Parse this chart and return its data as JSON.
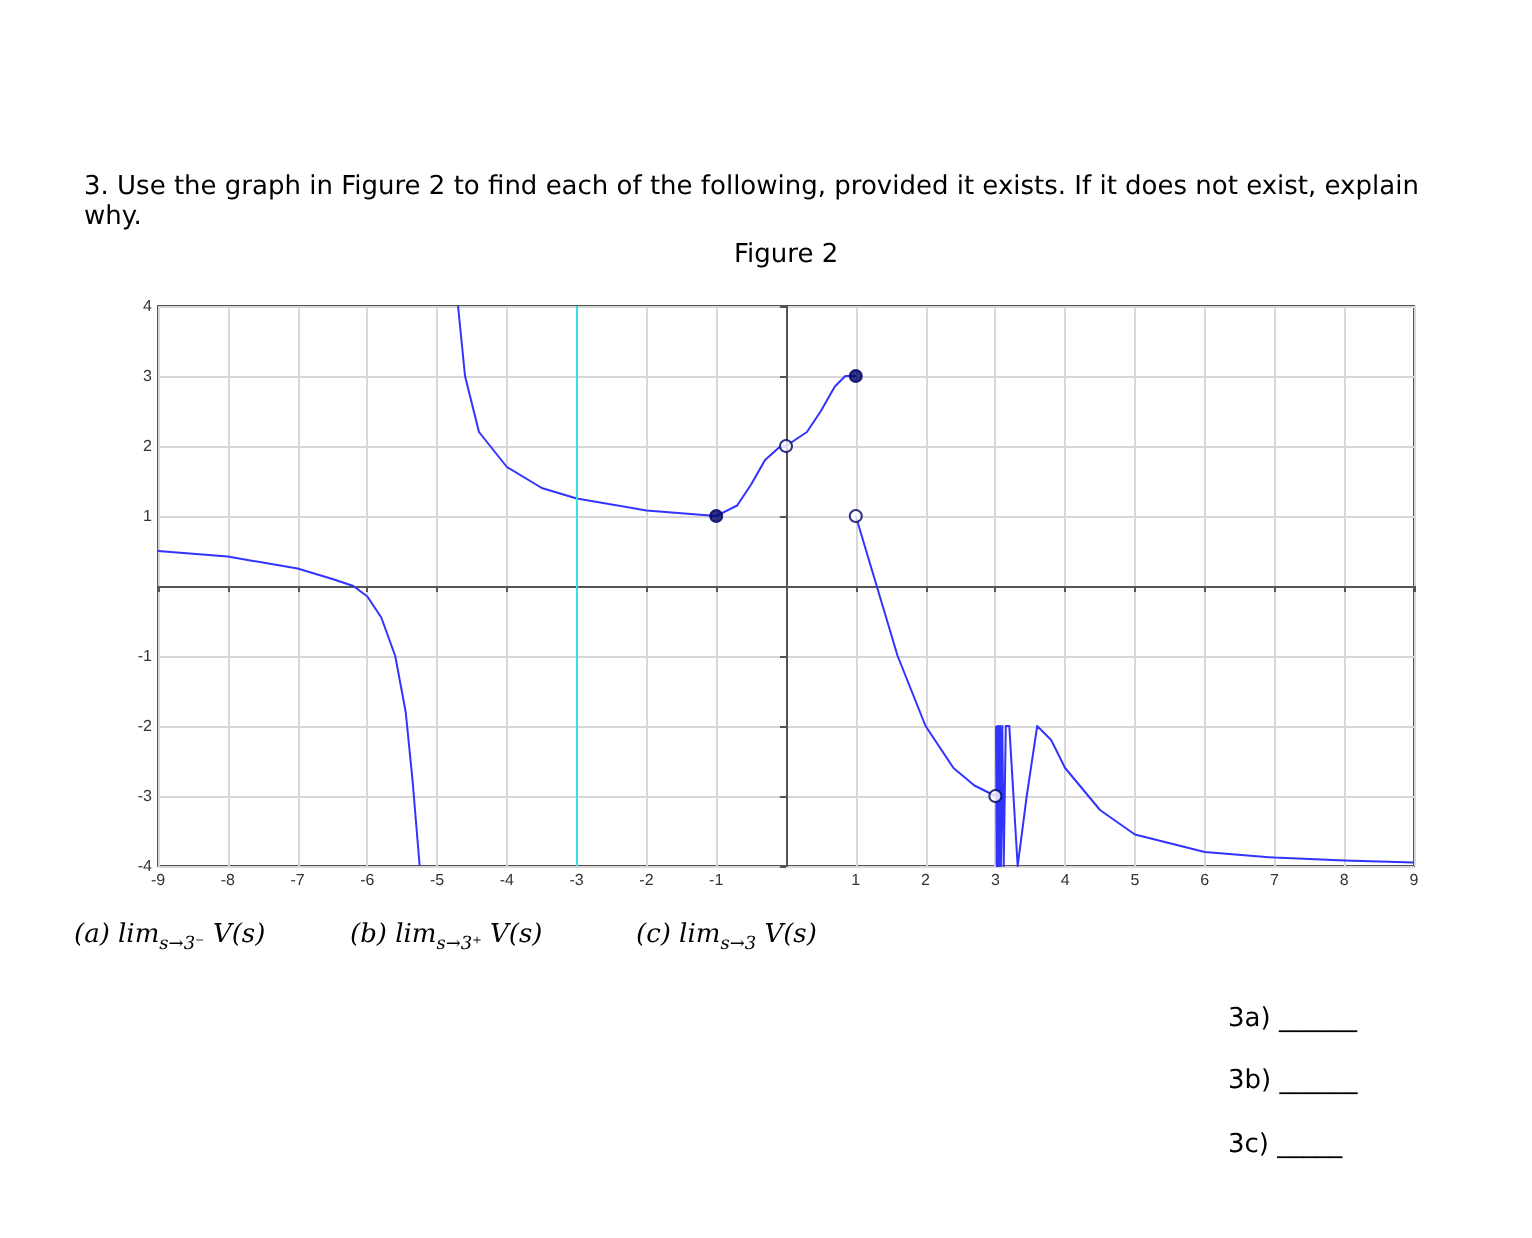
{
  "chart_data": {
    "type": "line",
    "title": "Figure 2",
    "annotations": [
      "3. Use the graph in Figure 2 to find each of the following, provided it exists. If it does not exist, explain why.",
      "(a) lim$_{s→3⁻}$ V(s)",
      "(b) lim$_{s→3⁺}$ V(s)",
      "(c) lim$_{s→3}$ V(s)",
      "3a) ______",
      "3b) ______",
      "3c) _____"
    ],
    "xlim": [
      -9,
      9
    ],
    "ylim": [
      -4,
      4
    ],
    "xticks": [
      -9,
      -8,
      -7,
      -6,
      -5,
      -4,
      -3,
      -2,
      -1,
      1,
      2,
      3,
      4,
      5,
      6,
      7,
      8,
      9
    ],
    "yticks": [
      -4,
      -3,
      -2,
      -1,
      1,
      2,
      3,
      4
    ],
    "grid": true,
    "ref_lines": [
      {
        "axis": "x",
        "value": -3,
        "color": "#33e0e8"
      }
    ],
    "series": [
      {
        "color": "#3333ff",
        "marker": "none",
        "x": [
          -9,
          -8,
          -7,
          -6.5,
          -6.2,
          -6,
          -5.8,
          -5.6,
          -5.45,
          -5.35,
          -5.25
        ],
        "values": [
          0.5,
          0.42,
          0.25,
          0.1,
          0,
          -0.15,
          -0.45,
          -1,
          -1.8,
          -2.8,
          -4
        ]
      },
      {
        "color": "#3333ff",
        "marker": "none",
        "x": [
          -4.7,
          -4.6,
          -4.4,
          -4,
          -3.5,
          -3,
          -2,
          -1
        ],
        "values": [
          4,
          3,
          2.2,
          1.7,
          1.4,
          1.25,
          1.08,
          1
        ]
      },
      {
        "color": "#3333ff",
        "marker": "none",
        "x": [
          -1,
          -0.7,
          -0.5,
          -0.3,
          -0.1,
          0,
          0.3,
          0.5,
          0.7,
          0.85,
          1
        ],
        "values": [
          1,
          1.15,
          1.45,
          1.8,
          1.98,
          2,
          2.2,
          2.5,
          2.85,
          3,
          3
        ]
      },
      {
        "color": "#3333ff",
        "marker": "none",
        "x": [
          1,
          1.3,
          1.6,
          2,
          2.4,
          2.7,
          3
        ],
        "values": [
          1,
          0,
          -1,
          -2,
          -2.6,
          -2.85,
          -3
        ]
      },
      {
        "color": "#3333ff",
        "marker": "none",
        "x": [
          3.01,
          3.02,
          3.03,
          3.04,
          3.05,
          3.06,
          3.07,
          3.08,
          3.1,
          3.12,
          3.15,
          3.2,
          3.32,
          3.45,
          3.6,
          3.8,
          4,
          4.5,
          5,
          6,
          7,
          8,
          9
        ],
        "values": [
          -2,
          -4,
          -2,
          -4,
          -2,
          -4,
          -2,
          -4,
          -2,
          -4,
          -2,
          -2,
          -4,
          -3,
          -2,
          -2.2,
          -2.6,
          -3.2,
          -3.55,
          -3.8,
          -3.88,
          -3.92,
          -3.95
        ]
      },
      {
        "type": "scatter",
        "color": "#000066",
        "marker": "circle",
        "x": [
          -1,
          1
        ],
        "values": [
          1,
          3
        ]
      },
      {
        "type": "scatter",
        "color": "#ffffff",
        "marker": "circle",
        "x": [
          0,
          1,
          3
        ],
        "values": [
          2,
          1,
          -3
        ]
      }
    ]
  }
}
